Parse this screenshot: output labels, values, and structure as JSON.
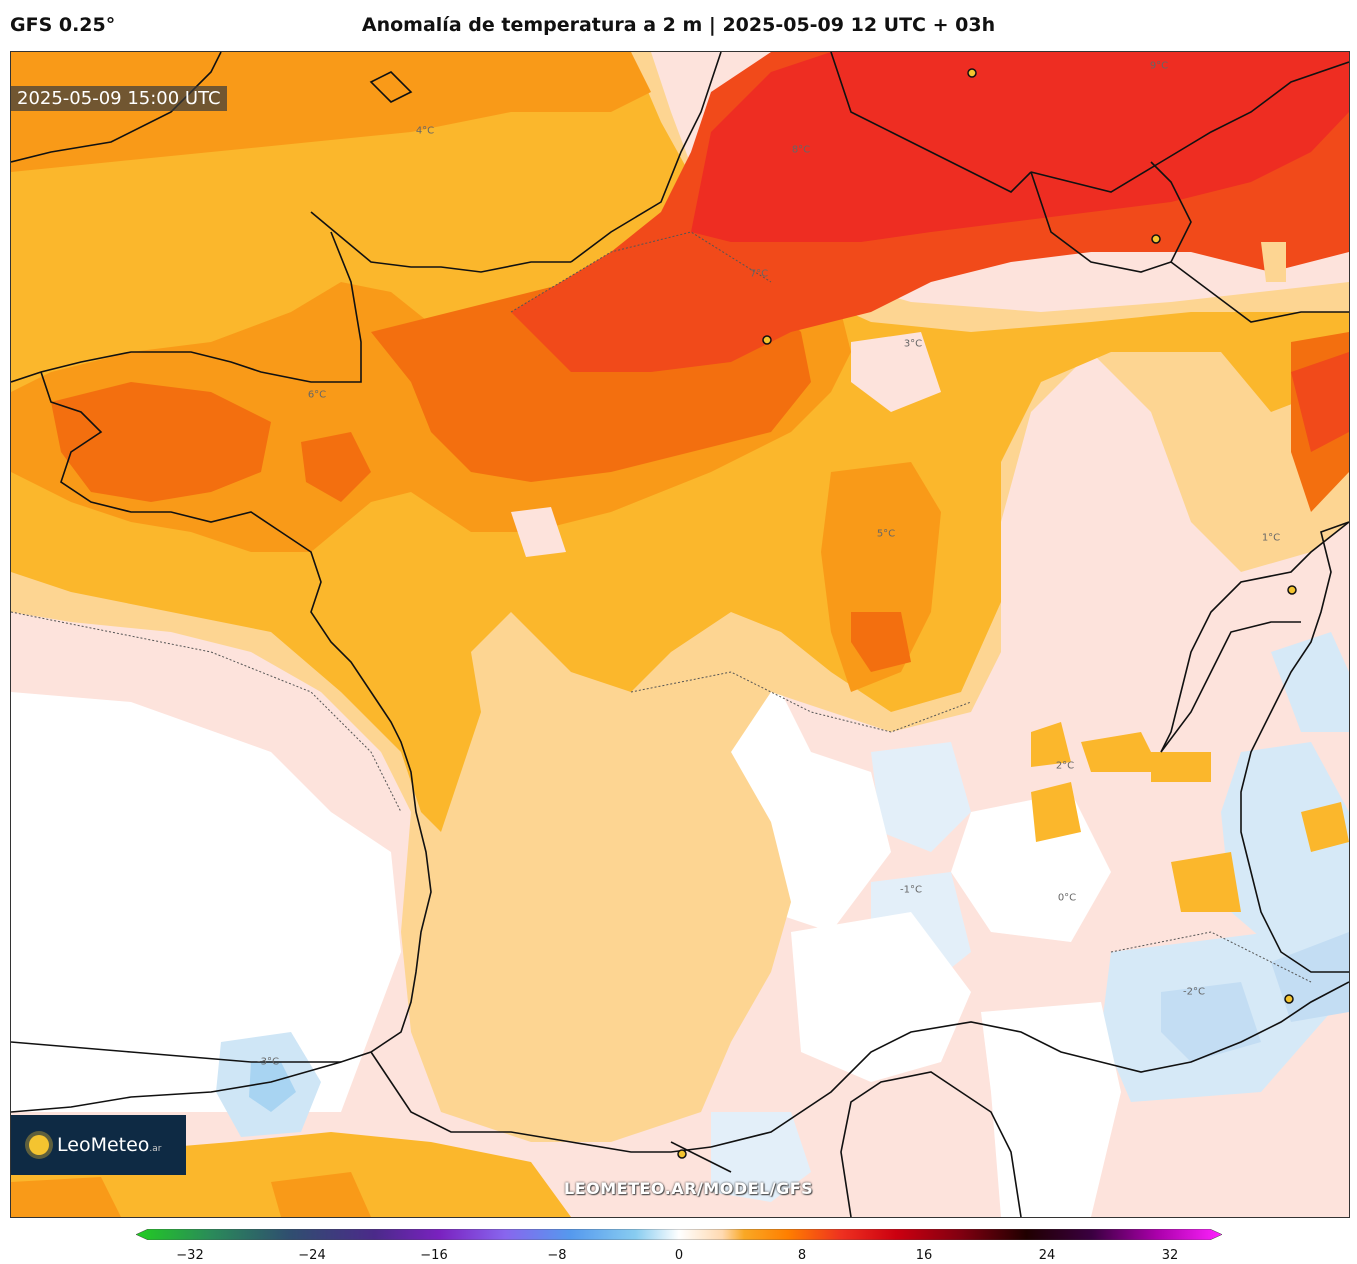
{
  "header": {
    "model": "GFS 0.25°",
    "title": "Anomalía de temperatura a 2 m | 2025-05-09 12 UTC + 03h"
  },
  "map": {
    "valid_time": "2025-05-09 15:00 UTC",
    "watermark": "LEOMETEO.AR/MODEL/GFS",
    "logo_text": "LeoMeteo",
    "logo_suffix": ".ar",
    "contour_labels": [
      "4°C",
      "6°C",
      "7°C",
      "8°C",
      "9°C",
      "5°C",
      "3°C",
      "2°C",
      "1°C",
      "0°C",
      "-1°C",
      "-2°C",
      "-3°C"
    ]
  },
  "colorbar": {
    "ticks": [
      "−32",
      "−24",
      "−16",
      "−8",
      "0",
      "8",
      "16",
      "24",
      "32"
    ],
    "colors": [
      "#22cc22",
      "#2a8a5a",
      "#2f4f6f",
      "#4b2a8a",
      "#7a22c0",
      "#8866ee",
      "#5599ee",
      "#88ccf0",
      "#d8ecf8",
      "#ffffff",
      "#ffd9b0",
      "#f9a825",
      "#ff7f00",
      "#ee3020",
      "#cc0010",
      "#800010",
      "#200000",
      "#3a0040",
      "#aa00aa",
      "#ff22ff"
    ]
  }
}
